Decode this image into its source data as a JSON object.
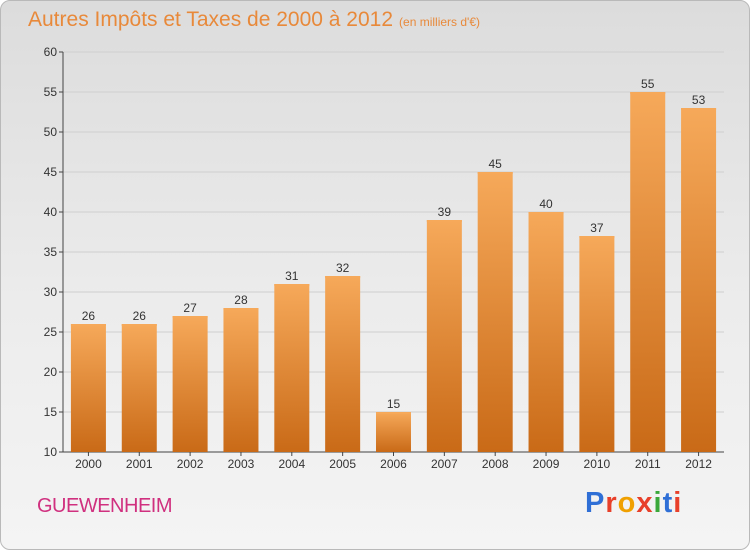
{
  "title": "Autres Impôts et Taxes de 2000 à 2012",
  "subtitle": "(en milliers d'€)",
  "city": "GUEWENHEIM",
  "logo": {
    "letters": [
      "P",
      "r",
      "o",
      "x",
      "i",
      "t",
      "i"
    ],
    "colors": [
      "#2f6fd6",
      "#e8402a",
      "#f0a000",
      "#e8402a",
      "#3aa83a",
      "#2f6fd6",
      "#e8402a"
    ]
  },
  "colors": {
    "bar": "#e8892e",
    "bar_light": "#f6a95a",
    "bar_dark": "#c96a17",
    "title": "#e8893a",
    "city": "#d0307f"
  },
  "chart_data": {
    "type": "bar",
    "title": "Autres Impôts et Taxes de 2000 à 2012",
    "subtitle": "(en milliers d'€)",
    "categories": [
      "2000",
      "2001",
      "2002",
      "2003",
      "2004",
      "2005",
      "2006",
      "2007",
      "2008",
      "2009",
      "2010",
      "2011",
      "2012"
    ],
    "values": [
      26,
      26,
      27,
      28,
      31,
      32,
      15,
      39,
      45,
      40,
      37,
      55,
      53
    ],
    "ylim": [
      10,
      60
    ],
    "yticks": [
      10,
      15,
      20,
      25,
      30,
      35,
      40,
      45,
      50,
      55,
      60
    ],
    "grid": true
  }
}
